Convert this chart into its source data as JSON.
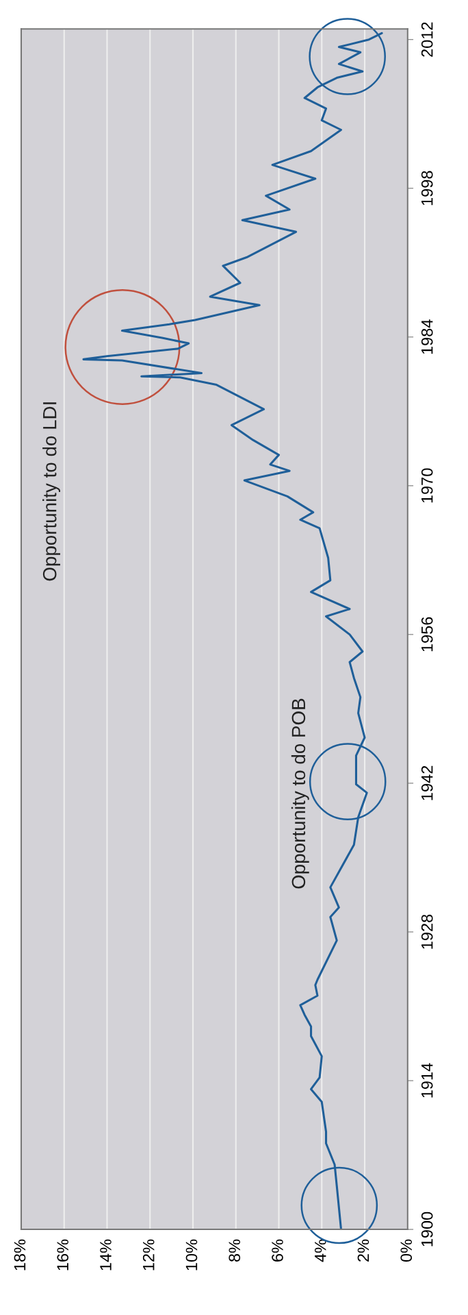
{
  "chart_data": {
    "type": "line",
    "x": [
      1900,
      1904.1,
      1906.1,
      1908.1,
      1909.2,
      1912.0,
      1913.2,
      1914.3,
      1916.3,
      1918.2,
      1919.1,
      1920.2,
      1921.1,
      1922.0,
      1923.0,
      1923.5,
      1927.2,
      1929.4,
      1930.3,
      1932.2,
      1936.2,
      1938.8,
      1941.1,
      1941.9,
      1944.6,
      1946.3,
      1948.6,
      1950.1,
      1951.9,
      1953.4,
      1954.4,
      1956.0,
      1957.7,
      1958.4,
      1960.0,
      1961.1,
      1963.2,
      1966.0,
      1966.8,
      1967.5,
      1969.0,
      1970.5,
      1971.4,
      1972.0,
      1972.9,
      1974.3,
      1975.7,
      1977.2,
      1979.5,
      1980.2,
      1980.3,
      1980.6,
      1981.8,
      1981.9,
      1982.2,
      1982.9,
      1983.4,
      1983.9,
      1984.6,
      1985.2,
      1985.6,
      1987.0,
      1987.8,
      1989.1,
      1990.7,
      1991.5,
      1993.9,
      1995.0,
      1996.0,
      1997.3,
      1998.9,
      2000.2,
      2001.5,
      2003.5,
      2004.4,
      2005.5,
      2006.5,
      2007.5,
      2008.4,
      2009.0,
      2009.7,
      2010.8,
      2011.3,
      2012.0,
      2012.6
    ],
    "series": [
      {
        "color": "#1f5f99",
        "values": [
          3.1,
          3.3,
          3.4,
          3.8,
          3.8,
          4.0,
          4.5,
          4.1,
          4.0,
          4.5,
          4.5,
          4.8,
          5.0,
          4.2,
          4.3,
          4.2,
          3.3,
          3.6,
          3.2,
          3.6,
          2.5,
          2.3,
          1.9,
          2.4,
          2.4,
          2.0,
          2.3,
          2.2,
          2.5,
          2.7,
          2.1,
          2.7,
          3.8,
          2.7,
          4.5,
          3.6,
          3.7,
          4.1,
          5.0,
          4.4,
          5.6,
          7.6,
          5.5,
          6.4,
          6.0,
          7.2,
          8.2,
          6.7,
          8.9,
          10.6,
          12.4,
          9.6,
          13.3,
          15.1,
          14.0,
          10.7,
          10.2,
          11.4,
          13.3,
          11.1,
          9.9,
          6.9,
          9.2,
          7.8,
          8.6,
          7.5,
          5.2,
          7.7,
          5.5,
          6.6,
          4.3,
          6.3,
          4.5,
          3.1,
          4.0,
          3.8,
          4.8,
          4.2,
          3.3,
          2.1,
          3.2,
          2.2,
          3.2,
          1.8,
          1.2
        ]
      }
    ],
    "orientation": "horizontal",
    "ylim": [
      1900,
      2013
    ],
    "yticks": [
      1900,
      1914,
      1928,
      1942,
      1956,
      1970,
      1984,
      1998,
      2012
    ],
    "xlim": [
      18,
      0
    ],
    "xticks": [
      {
        "value": 0,
        "label": "0%"
      },
      {
        "value": 2,
        "label": "2%"
      },
      {
        "value": 4,
        "label": "4%"
      },
      {
        "value": 6,
        "label": "6%"
      },
      {
        "value": 8,
        "label": "8%"
      },
      {
        "value": 10,
        "label": "10%"
      },
      {
        "value": 12,
        "label": "12%"
      },
      {
        "value": 14,
        "label": "14%"
      },
      {
        "value": 16,
        "label": "16%"
      },
      {
        "value": 18,
        "label": "18%"
      }
    ],
    "grid": "x",
    "annotations": [
      "Opportunity to do POB",
      "Opportunity to do LDI"
    ]
  }
}
